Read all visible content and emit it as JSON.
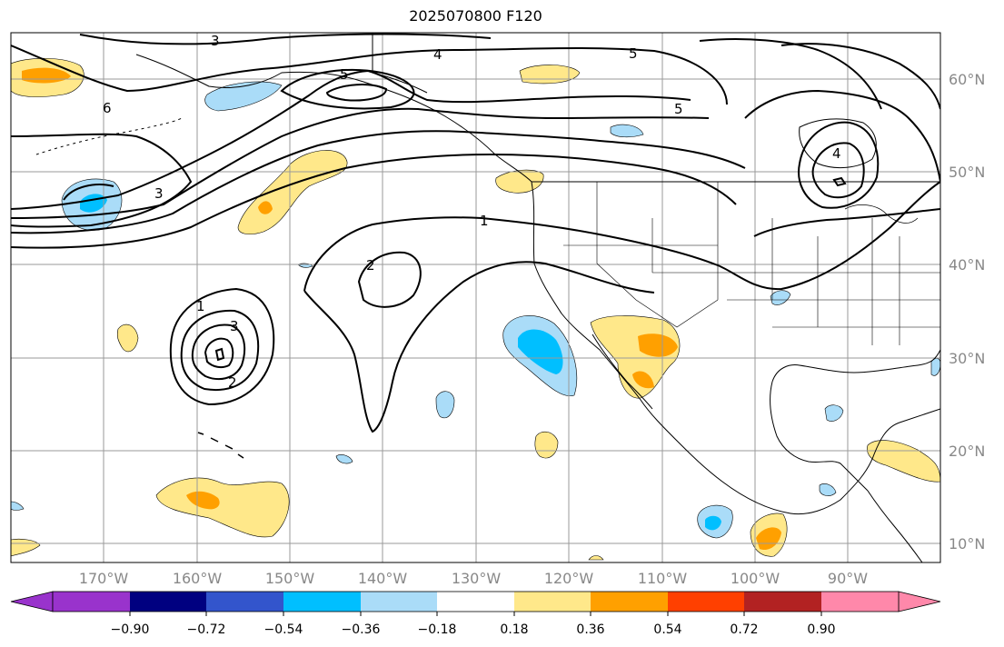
{
  "title": "2025070800 F120",
  "map": {
    "lon_ticks": [
      "170°W",
      "160°W",
      "150°W",
      "140°W",
      "130°W",
      "120°W",
      "110°W",
      "100°W",
      "90°W"
    ],
    "lat_ticks": [
      "60°N",
      "50°N",
      "40°N",
      "30°N",
      "20°N",
      "10°N"
    ],
    "contour_labels": [
      "3",
      "4",
      "5",
      "5",
      "6",
      "3",
      "5",
      "1",
      "2",
      "1",
      "3",
      "2",
      "4"
    ]
  },
  "colorbar": {
    "tick_labels": [
      "−0.90",
      "−0.72",
      "−0.54",
      "−0.36",
      "−0.18",
      "0.18",
      "0.36",
      "0.54",
      "0.72",
      "0.90"
    ],
    "colors": [
      "#9933cc",
      "#000080",
      "#3355cc",
      "#00bfff",
      "#aadcf8",
      "#ffffff",
      "#ffe88a",
      "#ffa000",
      "#ff4000",
      "#b22222",
      "#ff88aa"
    ],
    "extend_low_color": "#9933cc",
    "extend_high_color": "#ff88aa"
  }
}
